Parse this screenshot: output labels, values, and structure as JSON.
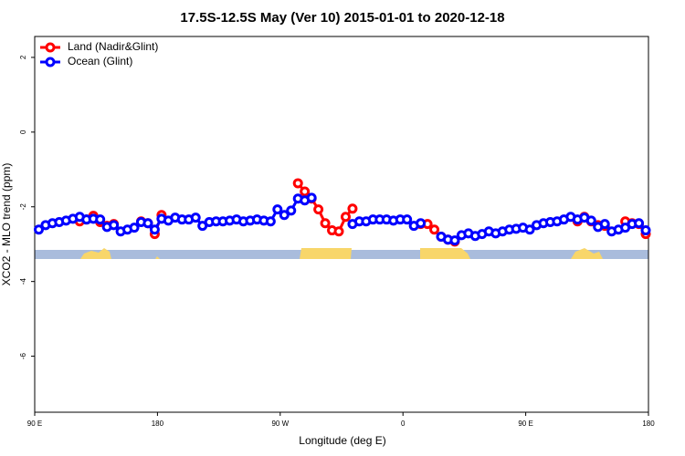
{
  "chart_data": {
    "type": "line",
    "title": "17.5S-12.5S May (Ver 10)   2015-01-01 to 2020-12-18",
    "x_label": "Longitude (deg E)",
    "y_label": "XCO2 - MLO trend (ppm)",
    "xlim": [
      90,
      540
    ],
    "ylim": [
      -7.5,
      2.56
    ],
    "xticks": [
      {
        "value": 90,
        "label": "90 E"
      },
      {
        "value": 180,
        "label": "180"
      },
      {
        "value": 270,
        "label": "90 W"
      },
      {
        "value": 360,
        "label": "0"
      },
      {
        "value": 450,
        "label": "90 E"
      },
      {
        "value": 540,
        "label": "180"
      }
    ],
    "yticks": [
      -6,
      -4,
      -2,
      0,
      2
    ],
    "legend": "top-left",
    "x": [
      93,
      98,
      103,
      108,
      113,
      118,
      123,
      128,
      133,
      138,
      143,
      148,
      153,
      158,
      163,
      168,
      173,
      178,
      183,
      188,
      193,
      198,
      203,
      208,
      213,
      218,
      223,
      228,
      233,
      238,
      243,
      248,
      253,
      258,
      263,
      268,
      273,
      278,
      283,
      288,
      293,
      298,
      303,
      308,
      313,
      318,
      323,
      328,
      333,
      338,
      343,
      348,
      353,
      358,
      363,
      368,
      373,
      378,
      383,
      388,
      393,
      398,
      403,
      408,
      413,
      418,
      423,
      428,
      433,
      438,
      443,
      448,
      453,
      458,
      463,
      468,
      473,
      478,
      483,
      488,
      493,
      498,
      503,
      508,
      513,
      518,
      523,
      528,
      533,
      538
    ],
    "series": [
      {
        "name": "Land (Nadir&Glint)",
        "color": "#ff0000",
        "values": [
          null,
          null,
          null,
          null,
          null,
          null,
          -2.39,
          -2.34,
          -2.24,
          -2.41,
          -2.51,
          -2.46,
          null,
          null,
          null,
          -2.39,
          -2.44,
          -2.73,
          -2.22,
          null,
          null,
          null,
          null,
          null,
          null,
          null,
          null,
          null,
          null,
          null,
          null,
          null,
          null,
          null,
          null,
          null,
          null,
          null,
          -1.37,
          -1.59,
          -1.78,
          -2.07,
          -2.44,
          -2.63,
          -2.66,
          -2.27,
          -2.05,
          null,
          null,
          null,
          null,
          null,
          null,
          null,
          null,
          null,
          -2.46,
          -2.46,
          -2.61,
          -2.8,
          -2.88,
          -2.93,
          null,
          null,
          null,
          null,
          null,
          null,
          null,
          null,
          null,
          null,
          null,
          null,
          null,
          null,
          null,
          null,
          null,
          -2.39,
          -2.27,
          -2.39,
          -2.49,
          -2.51,
          null,
          null,
          -2.39,
          -2.44,
          -2.46,
          -2.73
        ]
      },
      {
        "name": "Ocean (Glint)",
        "color": "#0000ff",
        "values": [
          -2.61,
          -2.49,
          -2.44,
          -2.41,
          -2.37,
          -2.32,
          -2.27,
          -2.34,
          -2.32,
          -2.34,
          -2.54,
          -2.49,
          -2.66,
          -2.61,
          -2.56,
          -2.41,
          -2.44,
          -2.61,
          -2.32,
          -2.37,
          -2.29,
          -2.34,
          -2.34,
          -2.29,
          -2.51,
          -2.41,
          -2.39,
          -2.39,
          -2.37,
          -2.34,
          -2.39,
          -2.37,
          -2.34,
          -2.37,
          -2.39,
          -2.07,
          -2.22,
          -2.1,
          -1.78,
          -1.83,
          -1.76,
          null,
          null,
          null,
          null,
          null,
          -2.46,
          -2.39,
          -2.39,
          -2.34,
          -2.34,
          -2.34,
          -2.37,
          -2.34,
          -2.34,
          -2.51,
          -2.44,
          null,
          null,
          -2.8,
          -2.88,
          -2.9,
          -2.76,
          -2.71,
          -2.78,
          -2.73,
          -2.66,
          -2.71,
          -2.66,
          -2.61,
          -2.59,
          -2.56,
          -2.61,
          -2.49,
          -2.44,
          -2.41,
          -2.39,
          -2.34,
          -2.27,
          -2.34,
          -2.29,
          -2.37,
          -2.54,
          -2.46,
          -2.66,
          -2.61,
          -2.56,
          -2.46,
          -2.44,
          -2.63
        ]
      }
    ]
  }
}
